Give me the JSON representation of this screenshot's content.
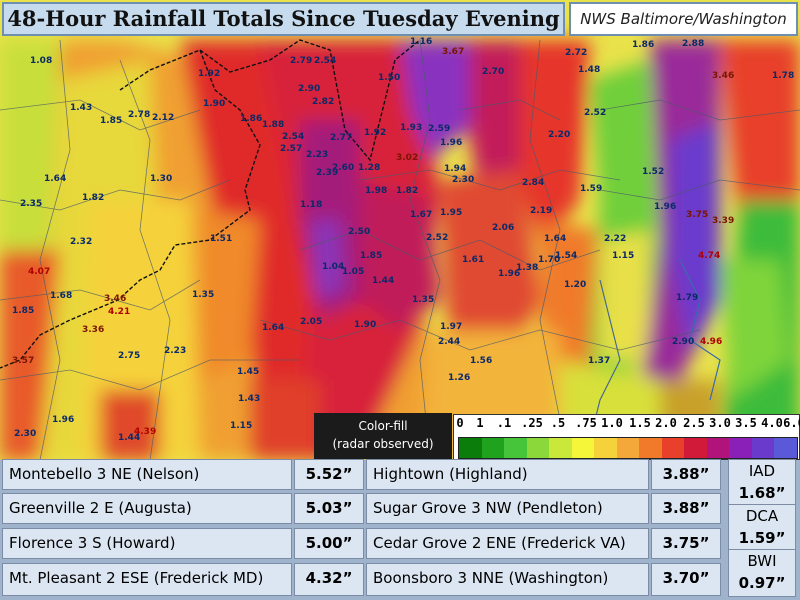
{
  "header": {
    "title": "48-Hour Rainfall Totals Since Tuesday Evening",
    "office": "NWS Baltimore/Washington"
  },
  "legend": {
    "caption_line1": "Color-fill",
    "caption_line2": "(radar observed)",
    "ticks": [
      "0",
      "1",
      ".1",
      ".25",
      ".5",
      ".75",
      "1.0",
      "1.5",
      "2.0",
      "2.5",
      "3.0",
      "3.5",
      "4.0",
      "6.0"
    ],
    "colors": [
      "#0a7d0a",
      "#1fa31f",
      "#46c43a",
      "#8bd83a",
      "#c9e83a",
      "#f5f53a",
      "#f5d23a",
      "#f5a83a",
      "#f07a2a",
      "#e8402a",
      "#d11a3a",
      "#b0147a",
      "#8a20b8",
      "#6a3acc",
      "#5a5ad8"
    ]
  },
  "map_points": [
    {
      "v": "1.08"
    },
    {
      "v": "1.43"
    },
    {
      "v": "1.92"
    },
    {
      "v": "2.79"
    },
    {
      "v": "2.54"
    },
    {
      "v": "1.50"
    },
    {
      "v": "1.16"
    },
    {
      "v": "3.67"
    },
    {
      "v": "2.70"
    },
    {
      "v": "2.72"
    },
    {
      "v": "1.48"
    },
    {
      "v": "1.86"
    },
    {
      "v": "2.88"
    },
    {
      "v": "2.78"
    },
    {
      "v": "2.12"
    },
    {
      "v": "1.90"
    },
    {
      "v": "1.86"
    },
    {
      "v": "1.88"
    },
    {
      "v": "2.90"
    },
    {
      "v": "2.82"
    },
    {
      "v": "1.92"
    },
    {
      "v": "1.93"
    },
    {
      "v": "2.59"
    },
    {
      "v": "1.96"
    },
    {
      "v": "2.20"
    },
    {
      "v": "2.52"
    },
    {
      "v": "3.46"
    },
    {
      "v": "1.78"
    },
    {
      "v": "1.85"
    },
    {
      "v": "2.54"
    },
    {
      "v": "2.57"
    },
    {
      "v": "2.23"
    },
    {
      "v": "2.77"
    },
    {
      "v": "1.28"
    },
    {
      "v": "3.02"
    },
    {
      "v": "1.64"
    },
    {
      "v": "1.30"
    },
    {
      "v": "1.82"
    },
    {
      "v": "2.39"
    },
    {
      "v": "2.60"
    },
    {
      "v": "1.18"
    },
    {
      "v": "1.94"
    },
    {
      "v": "2.30"
    },
    {
      "v": "2.84"
    },
    {
      "v": "1.59"
    },
    {
      "v": "1.52"
    },
    {
      "v": "1.96"
    },
    {
      "v": "3.75"
    },
    {
      "v": "3.39"
    },
    {
      "v": "2.35"
    },
    {
      "v": "1.98"
    },
    {
      "v": "1.82"
    },
    {
      "v": "1.67"
    },
    {
      "v": "1.95"
    },
    {
      "v": "2.06"
    },
    {
      "v": "2.19"
    },
    {
      "v": "1.64"
    },
    {
      "v": "2.22"
    },
    {
      "v": "2.32"
    },
    {
      "v": "4.07"
    },
    {
      "v": "1.51"
    },
    {
      "v": "2.50"
    },
    {
      "v": "2.52"
    },
    {
      "v": "1.85"
    },
    {
      "v": "1.61"
    },
    {
      "v": "1.38"
    },
    {
      "v": "1.70"
    },
    {
      "v": "1.54"
    },
    {
      "v": "1.15"
    },
    {
      "v": "4.74"
    },
    {
      "v": "1.68"
    },
    {
      "v": "1.35"
    },
    {
      "v": "1.04"
    },
    {
      "v": "1.05"
    },
    {
      "v": "1.44"
    },
    {
      "v": "1.96"
    },
    {
      "v": "1.20"
    },
    {
      "v": "3.46"
    },
    {
      "v": "4.21"
    },
    {
      "v": "2.05"
    },
    {
      "v": "1.90"
    },
    {
      "v": "1.35"
    },
    {
      "v": "1.97"
    },
    {
      "v": "1.79"
    },
    {
      "v": "1.85"
    },
    {
      "v": "3.36"
    },
    {
      "v": "1.64"
    },
    {
      "v": "2.44"
    },
    {
      "v": "1.37"
    },
    {
      "v": "1.56"
    },
    {
      "v": "2.90"
    },
    {
      "v": "4.96"
    },
    {
      "v": "3.57"
    },
    {
      "v": "2.75"
    },
    {
      "v": "2.23"
    },
    {
      "v": "1.45"
    },
    {
      "v": "1.26"
    },
    {
      "v": "1.43"
    },
    {
      "v": "1.96"
    },
    {
      "v": "4.39"
    },
    {
      "v": "2.30"
    },
    {
      "v": "1.15"
    },
    {
      "v": "1.44"
    }
  ],
  "table": {
    "left": [
      {
        "name": "Montebello 3 NE (Nelson)",
        "value": "5.52”"
      },
      {
        "name": "Greenville 2 E (Augusta)",
        "value": "5.03”"
      },
      {
        "name": "Florence 3 S (Howard)",
        "value": "5.00”"
      },
      {
        "name": "Mt. Pleasant 2 ESE (Frederick MD)",
        "value": "4.32”"
      }
    ],
    "right": [
      {
        "name": "Hightown (Highland)",
        "value": "3.88”"
      },
      {
        "name": "Sugar Grove 3 NW (Pendleton)",
        "value": "3.88”"
      },
      {
        "name": "Cedar Grove 2 ENE (Frederick VA)",
        "value": "3.75”"
      },
      {
        "name": "Boonsboro 3 NNE (Washington)",
        "value": "3.70”"
      }
    ]
  },
  "airports": [
    {
      "code": "IAD",
      "value": "1.68”"
    },
    {
      "code": "DCA",
      "value": "1.59”"
    },
    {
      "code": "BWI",
      "value": "0.97”"
    }
  ]
}
